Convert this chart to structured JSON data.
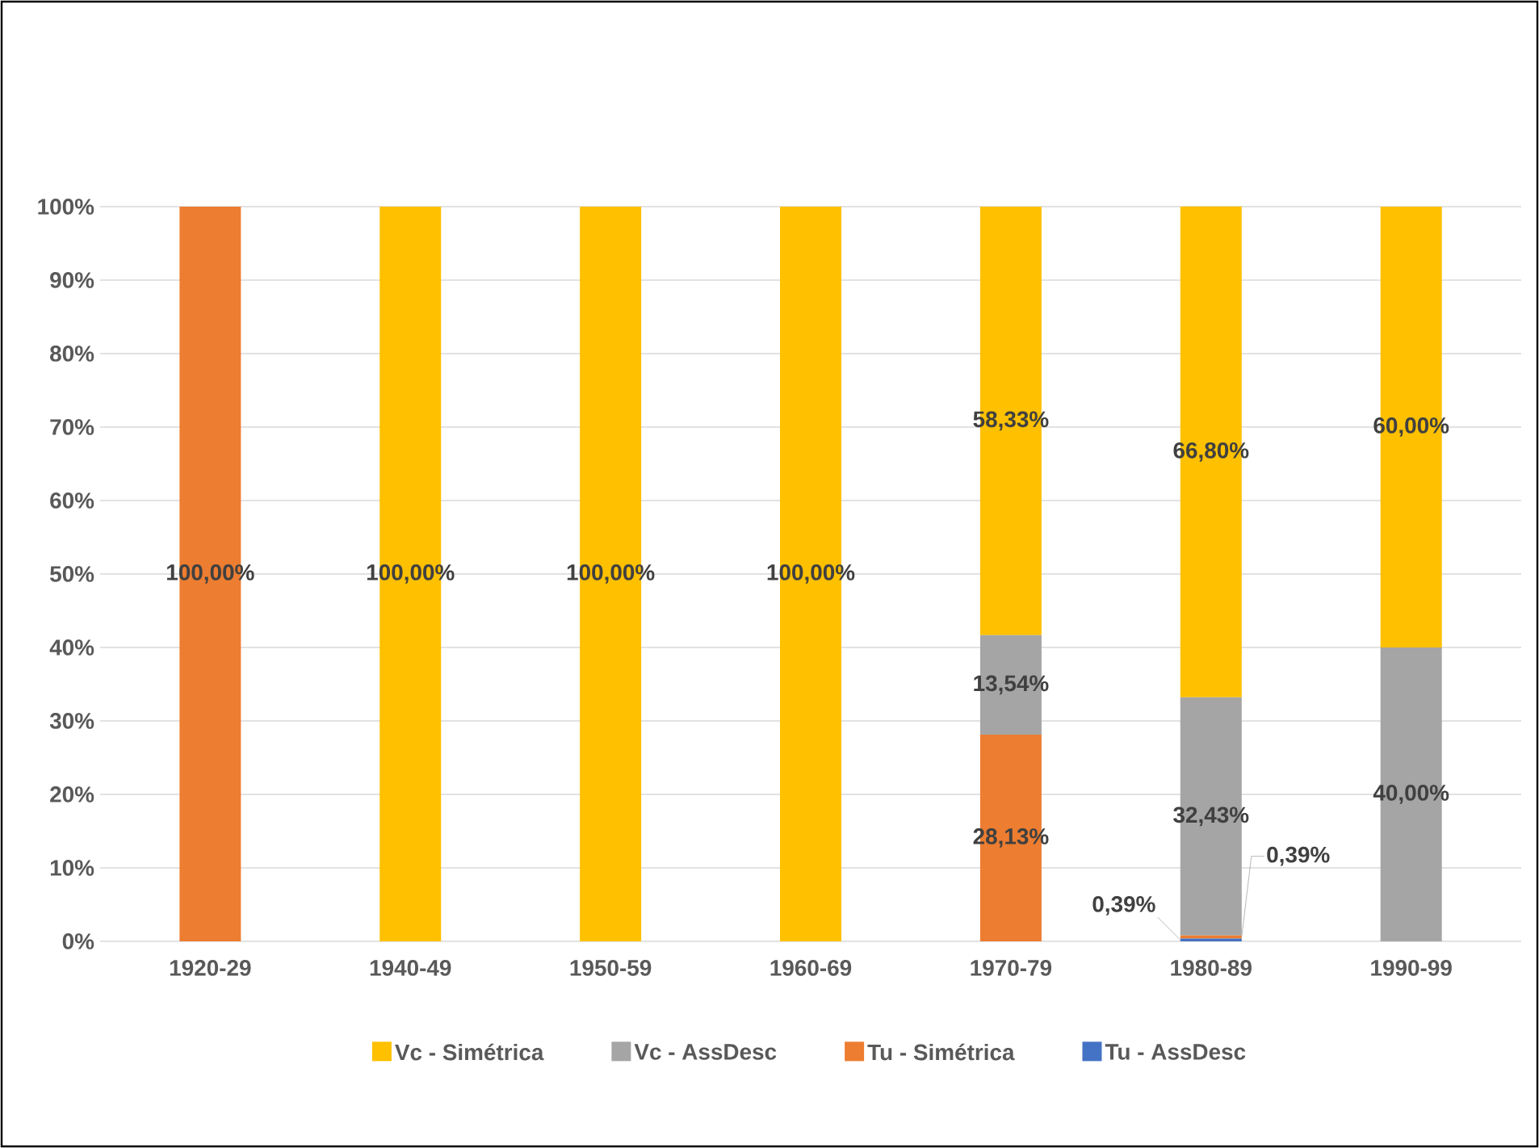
{
  "chart_data": {
    "type": "bar",
    "stacked": true,
    "categories": [
      "1920-29",
      "1940-49",
      "1950-59",
      "1960-69",
      "1970-79",
      "1980-89",
      "1990-99"
    ],
    "series": [
      {
        "name": "Tu - AssDesc",
        "color": "#4472c4",
        "values": [
          0,
          0,
          0,
          0,
          0,
          0.39,
          0
        ],
        "value_labels": [
          null,
          null,
          null,
          null,
          null,
          "0,39%",
          null
        ]
      },
      {
        "name": "Tu - Simétrica",
        "color": "#ed7d31",
        "values": [
          100,
          0,
          0,
          0,
          28.13,
          0.39,
          0
        ],
        "value_labels": [
          "100,00%",
          null,
          null,
          null,
          "28,13%",
          "0,39%",
          null
        ]
      },
      {
        "name": "Vc - AssDesc",
        "color": "#a5a5a5",
        "values": [
          0,
          0,
          0,
          0,
          13.54,
          32.43,
          40
        ],
        "value_labels": [
          null,
          null,
          null,
          null,
          "13,54%",
          "32,43%",
          "40,00%"
        ]
      },
      {
        "name": "Vc - Simétrica",
        "color": "#ffc000",
        "values": [
          0,
          100,
          100,
          100,
          58.33,
          66.8,
          60
        ],
        "value_labels": [
          null,
          "100,00%",
          "100,00%",
          "100,00%",
          "58,33%",
          "66,80%",
          "60,00%"
        ]
      }
    ],
    "ylim": [
      0,
      100
    ],
    "yticks": [
      {
        "value": 0,
        "label": "0%"
      },
      {
        "value": 10,
        "label": "10%"
      },
      {
        "value": 20,
        "label": "20%"
      },
      {
        "value": 30,
        "label": "30%"
      },
      {
        "value": 40,
        "label": "40%"
      },
      {
        "value": 50,
        "label": "50%"
      },
      {
        "value": 60,
        "label": "60%"
      },
      {
        "value": 70,
        "label": "70%"
      },
      {
        "value": 80,
        "label": "80%"
      },
      {
        "value": 90,
        "label": "90%"
      },
      {
        "value": 100,
        "label": "100%"
      }
    ],
    "grid": "y",
    "legend": "bottom"
  }
}
